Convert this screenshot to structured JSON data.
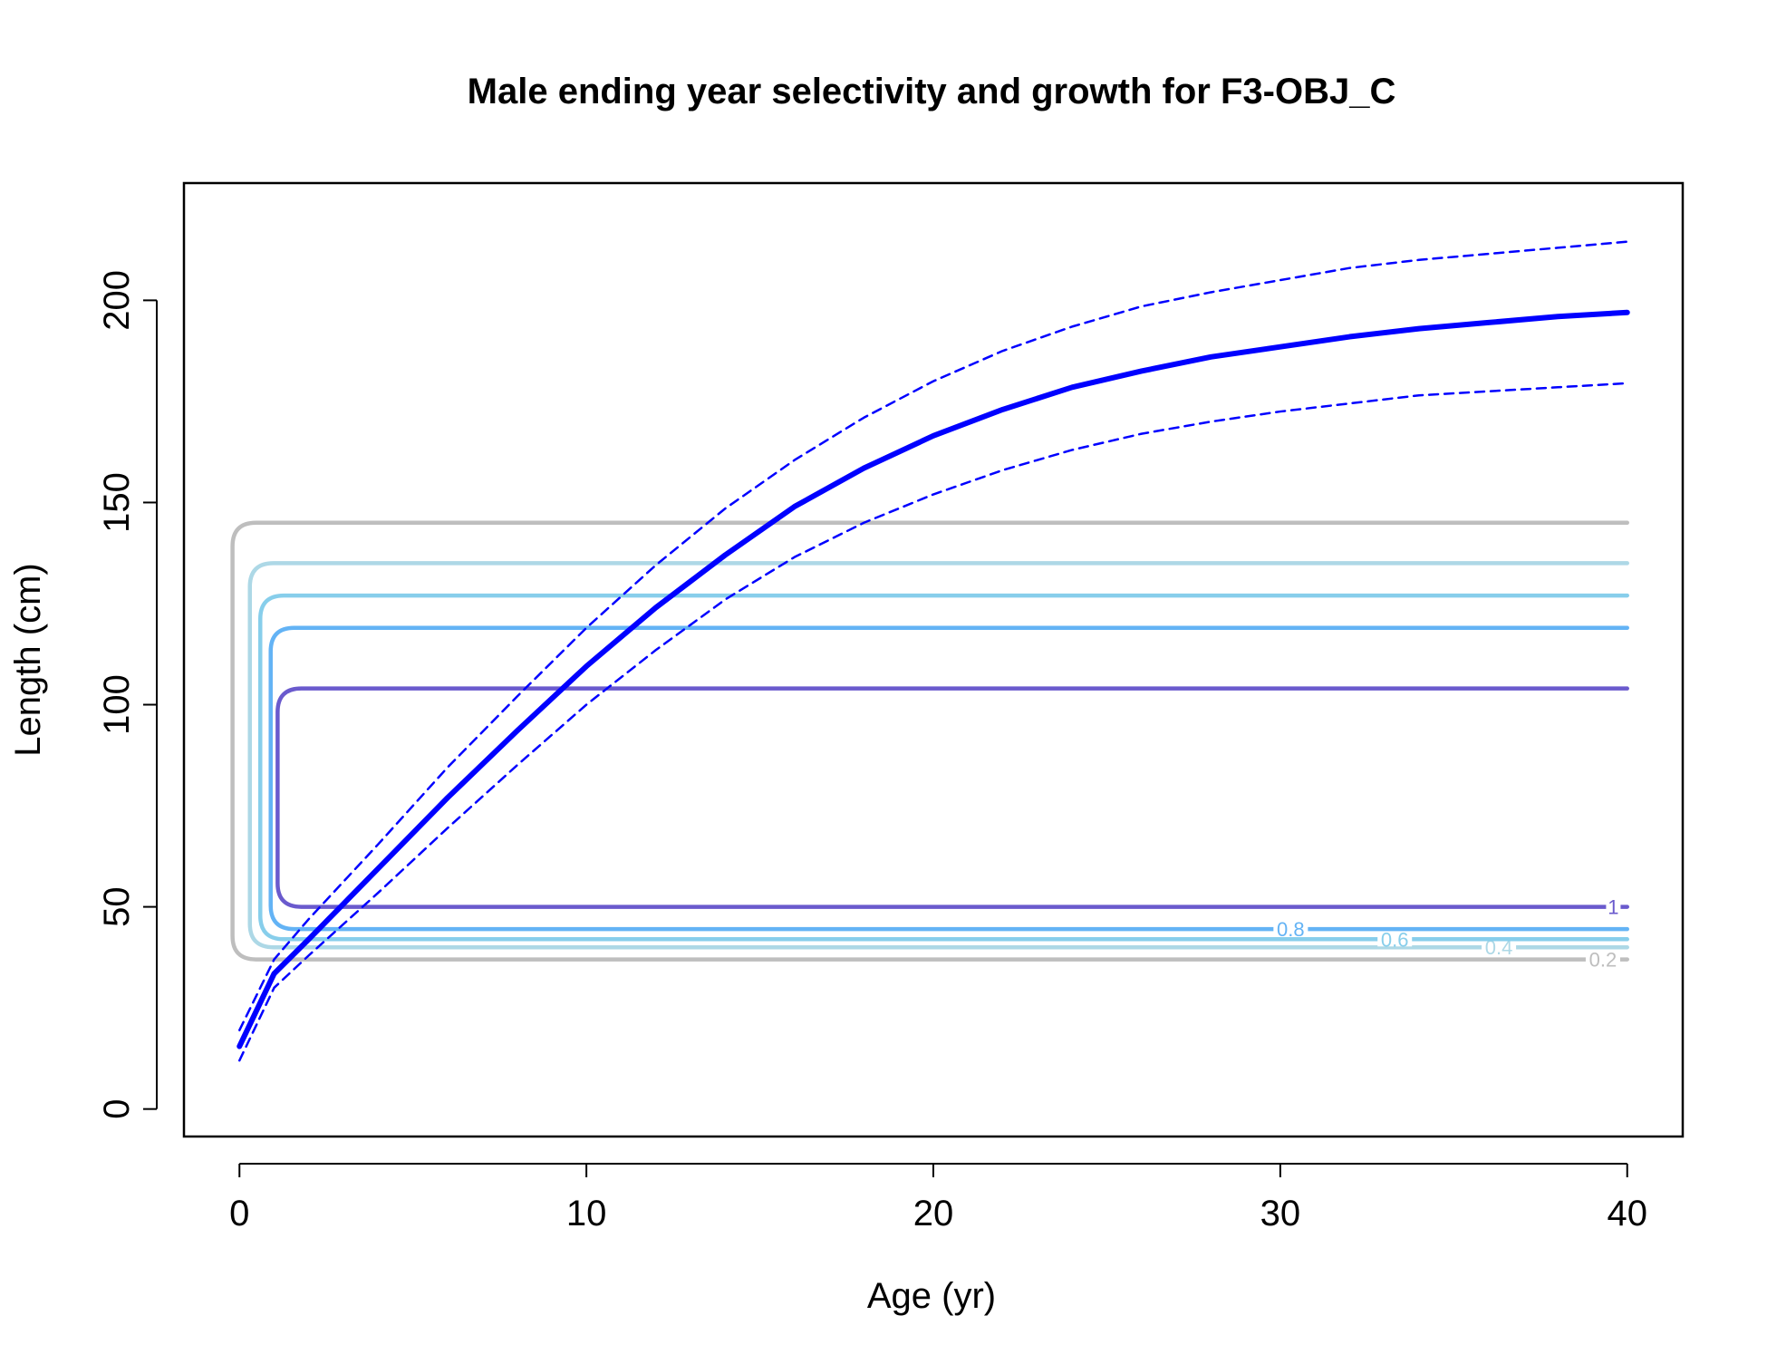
{
  "chart_data": {
    "type": "line",
    "title": "Male ending year selectivity and growth for F3-OBJ_C",
    "xlabel": "Age (yr)",
    "ylabel": "Length (cm)",
    "xlim": [
      -1.6,
      41.6
    ],
    "ylim": [
      -6.8,
      229
    ],
    "x_ticks": [
      0,
      10,
      20,
      30,
      40
    ],
    "y_ticks": [
      0,
      50,
      100,
      150,
      200
    ],
    "grid": false,
    "legend": "none",
    "growth_mean": {
      "x": [
        0,
        1,
        2,
        4,
        6,
        8,
        10,
        12,
        14,
        16,
        18,
        20,
        22,
        24,
        26,
        28,
        30,
        32,
        34,
        36,
        38,
        40
      ],
      "y": [
        15.5,
        33.5,
        42,
        59.5,
        77,
        93.5,
        109.5,
        124,
        137,
        149,
        158.5,
        166.5,
        173,
        178.5,
        182.5,
        186,
        188.5,
        191,
        193,
        194.5,
        196,
        197
      ],
      "color": "#0000ff"
    },
    "growth_upper": {
      "x": [
        0,
        1,
        2,
        4,
        6,
        8,
        10,
        12,
        14,
        16,
        18,
        20,
        22,
        24,
        26,
        28,
        30,
        32,
        34,
        36,
        38,
        40
      ],
      "y": [
        19.5,
        37,
        47,
        65.5,
        84.5,
        102,
        119,
        134.5,
        148.5,
        160.5,
        171,
        180,
        187.5,
        193.5,
        198.5,
        202,
        205,
        208,
        210,
        211.5,
        213,
        214.5
      ],
      "color": "#0000ff"
    },
    "growth_lower": {
      "x": [
        0,
        1,
        2,
        4,
        6,
        8,
        10,
        12,
        14,
        16,
        18,
        20,
        22,
        24,
        26,
        28,
        30,
        32,
        34,
        36,
        38,
        40
      ],
      "y": [
        12,
        30,
        38,
        53.5,
        69.5,
        85,
        100,
        113.5,
        126,
        136.5,
        145,
        152,
        158,
        163,
        167,
        170,
        172.5,
        174.5,
        176.5,
        177.5,
        178.5,
        179.5
      ],
      "color": "#0000ff"
    },
    "selectivity_contours": [
      {
        "level": "0.2",
        "color": "#bebebe",
        "x_left": -0.2,
        "x_right": 40,
        "y_low": 37,
        "y_high": 145,
        "label_x": 39.3
      },
      {
        "level": "0.4",
        "color": "#add8e6",
        "x_left": 0.3,
        "x_right": 40,
        "y_low": 40,
        "y_high": 135,
        "label_x": 36.3
      },
      {
        "level": "0.6",
        "color": "#87ceeb",
        "x_left": 0.6,
        "x_right": 40,
        "y_low": 42,
        "y_high": 127,
        "label_x": 33.3
      },
      {
        "level": "0.8",
        "color": "#63b3f5",
        "x_left": 0.9,
        "x_right": 40,
        "y_low": 44.5,
        "y_high": 119,
        "label_x": 30.3
      },
      {
        "level": "1",
        "color": "#6a5acd",
        "x_left": 1.1,
        "x_right": 40,
        "y_low": 50,
        "y_high": 104,
        "label_x": 39.6
      }
    ]
  }
}
